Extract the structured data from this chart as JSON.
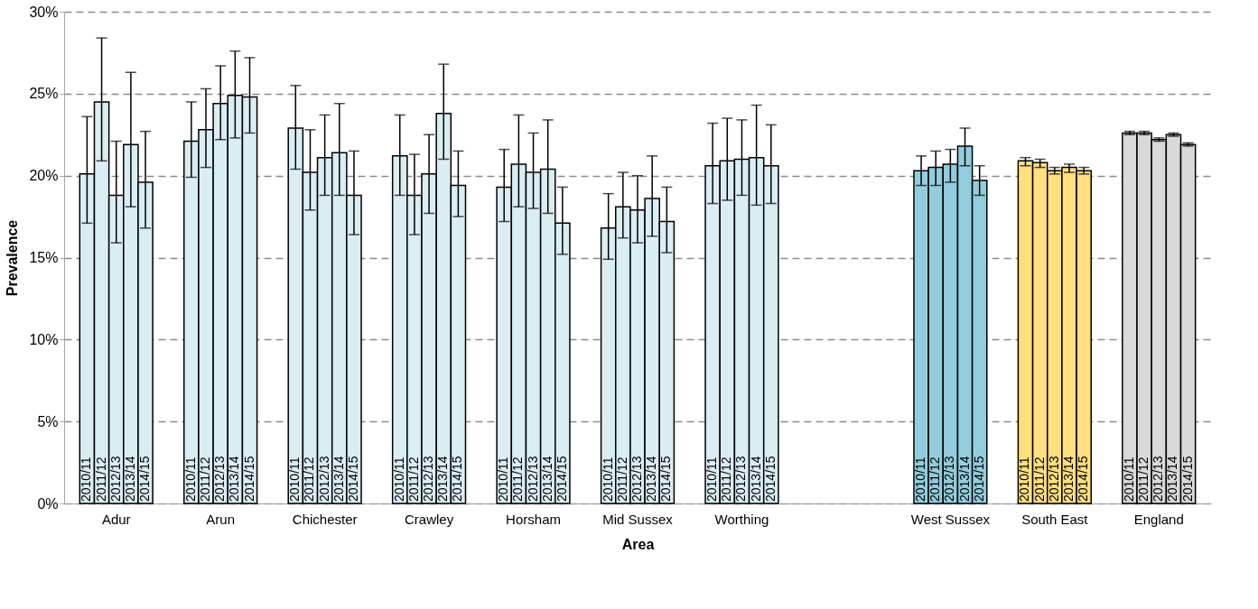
{
  "chart_data": {
    "type": "bar",
    "xlabel": "Area",
    "ylabel": "Prevalence",
    "categories": [
      "Adur",
      "Arun",
      "Chichester",
      "Crawley",
      "Horsham",
      "Mid Sussex",
      "Worthing",
      null,
      "West Sussex",
      "South East",
      "England"
    ],
    "series": [
      {
        "name": "2010/11",
        "colors": [
          "#daedf3",
          "#daedf3",
          "#daedf3",
          "#daedf3",
          "#daedf3",
          "#daedf3",
          "#daedf3",
          null,
          "#93cddd",
          "#ffdf7f",
          "#d9d9d9"
        ],
        "values": [
          20.1,
          22.1,
          22.9,
          21.2,
          19.3,
          16.8,
          20.6,
          null,
          20.3,
          20.9,
          22.6
        ],
        "errors": [
          [
            17.1,
            23.6
          ],
          [
            19.9,
            24.5
          ],
          [
            20.4,
            25.5
          ],
          [
            18.8,
            23.7
          ],
          [
            17.2,
            21.6
          ],
          [
            14.9,
            18.9
          ],
          [
            18.3,
            23.2
          ],
          null,
          [
            19.4,
            21.2
          ],
          [
            20.6,
            21.1
          ],
          [
            22.5,
            22.7
          ]
        ]
      },
      {
        "name": "2011/12",
        "colors": [
          "#daedf3",
          "#daedf3",
          "#daedf3",
          "#daedf3",
          "#daedf3",
          "#daedf3",
          "#daedf3",
          null,
          "#93cddd",
          "#ffdf7f",
          "#d9d9d9"
        ],
        "values": [
          24.5,
          22.8,
          20.2,
          18.8,
          20.7,
          18.1,
          20.9,
          null,
          20.5,
          20.8,
          22.6
        ],
        "errors": [
          [
            20.9,
            28.4
          ],
          [
            20.5,
            25.3
          ],
          [
            17.9,
            22.8
          ],
          [
            16.4,
            21.3
          ],
          [
            18.1,
            23.7
          ],
          [
            16.2,
            20.2
          ],
          [
            18.5,
            23.5
          ],
          null,
          [
            19.4,
            21.5
          ],
          [
            20.5,
            21.0
          ],
          [
            22.5,
            22.7
          ]
        ]
      },
      {
        "name": "2012/13",
        "colors": [
          "#daedf3",
          "#daedf3",
          "#daedf3",
          "#daedf3",
          "#daedf3",
          "#daedf3",
          "#daedf3",
          null,
          "#93cddd",
          "#ffdf7f",
          "#d9d9d9"
        ],
        "values": [
          18.8,
          24.4,
          21.1,
          20.1,
          20.2,
          17.9,
          21.0,
          null,
          20.7,
          20.3,
          22.2
        ],
        "errors": [
          [
            15.9,
            22.1
          ],
          [
            22.2,
            26.7
          ],
          [
            18.8,
            23.7
          ],
          [
            17.7,
            22.5
          ],
          [
            18.0,
            22.6
          ],
          [
            15.9,
            20.0
          ],
          [
            18.8,
            23.4
          ],
          null,
          [
            19.6,
            21.6
          ],
          [
            20.1,
            20.5
          ],
          [
            22.1,
            22.3
          ]
        ]
      },
      {
        "name": "2013/14",
        "colors": [
          "#daedf3",
          "#daedf3",
          "#daedf3",
          "#daedf3",
          "#daedf3",
          "#daedf3",
          "#daedf3",
          null,
          "#93cddd",
          "#ffdf7f",
          "#d9d9d9"
        ],
        "values": [
          21.9,
          24.9,
          21.4,
          23.8,
          20.4,
          18.6,
          21.1,
          null,
          21.8,
          20.5,
          22.5
        ],
        "errors": [
          [
            18.1,
            26.3
          ],
          [
            22.3,
            27.6
          ],
          [
            18.8,
            24.4
          ],
          [
            21.0,
            26.8
          ],
          [
            17.7,
            23.4
          ],
          [
            16.3,
            21.2
          ],
          [
            18.2,
            24.3
          ],
          null,
          [
            20.6,
            22.9
          ],
          [
            20.2,
            20.7
          ],
          [
            22.4,
            22.6
          ]
        ]
      },
      {
        "name": "2014/15",
        "colors": [
          "#daedf3",
          "#daedf3",
          "#daedf3",
          "#daedf3",
          "#daedf3",
          "#daedf3",
          "#daedf3",
          null,
          "#93cddd",
          "#ffdf7f",
          "#d9d9d9"
        ],
        "values": [
          19.6,
          24.8,
          18.8,
          19.4,
          17.1,
          17.2,
          20.6,
          null,
          19.7,
          20.3,
          21.9
        ],
        "errors": [
          [
            16.8,
            22.7
          ],
          [
            22.6,
            27.2
          ],
          [
            16.4,
            21.5
          ],
          [
            17.5,
            21.5
          ],
          [
            15.2,
            19.3
          ],
          [
            15.3,
            19.3
          ],
          [
            18.3,
            23.1
          ],
          null,
          [
            18.8,
            20.6
          ],
          [
            20.1,
            20.5
          ],
          [
            21.8,
            22.0
          ]
        ]
      }
    ],
    "ylim": [
      0,
      30
    ],
    "yticks": [
      {
        "value": 0,
        "label": "0%"
      },
      {
        "value": 5,
        "label": "5%"
      },
      {
        "value": 10,
        "label": "10%"
      },
      {
        "value": 15,
        "label": "15%"
      },
      {
        "value": 20,
        "label": "20%"
      },
      {
        "value": 25,
        "label": "25%"
      },
      {
        "value": 30,
        "label": "30%"
      }
    ],
    "grid": "y"
  }
}
